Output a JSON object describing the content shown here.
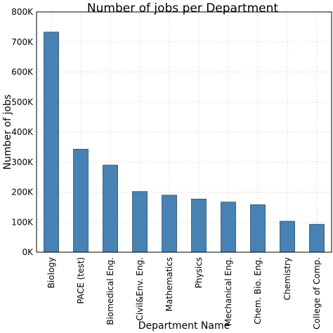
{
  "chart_data": {
    "type": "bar",
    "title": "Number of jobs per Department",
    "xlabel": "Department Name",
    "ylabel": "Number of jobs",
    "ylim": [
      0,
      800000
    ],
    "yticks": [
      0,
      100000,
      200000,
      300000,
      400000,
      500000,
      600000,
      700000,
      800000
    ],
    "ytick_labels": [
      "0K",
      "100K",
      "200K",
      "300K",
      "400K",
      "500K",
      "600K",
      "700K",
      "800K"
    ],
    "grid": true,
    "categories": [
      "Biology",
      "PACE (test)",
      "Biomedical Eng.",
      "Civil&Env. Eng.",
      "Mathematics",
      "Physics",
      "Mechanical Eng.",
      "Chem. Bio. Eng.",
      "Chemistry",
      "College of Comp."
    ],
    "values": [
      733000,
      343000,
      290000,
      202000,
      190000,
      177000,
      167000,
      158000,
      103000,
      93000
    ],
    "bar_color": "#4682b4"
  }
}
